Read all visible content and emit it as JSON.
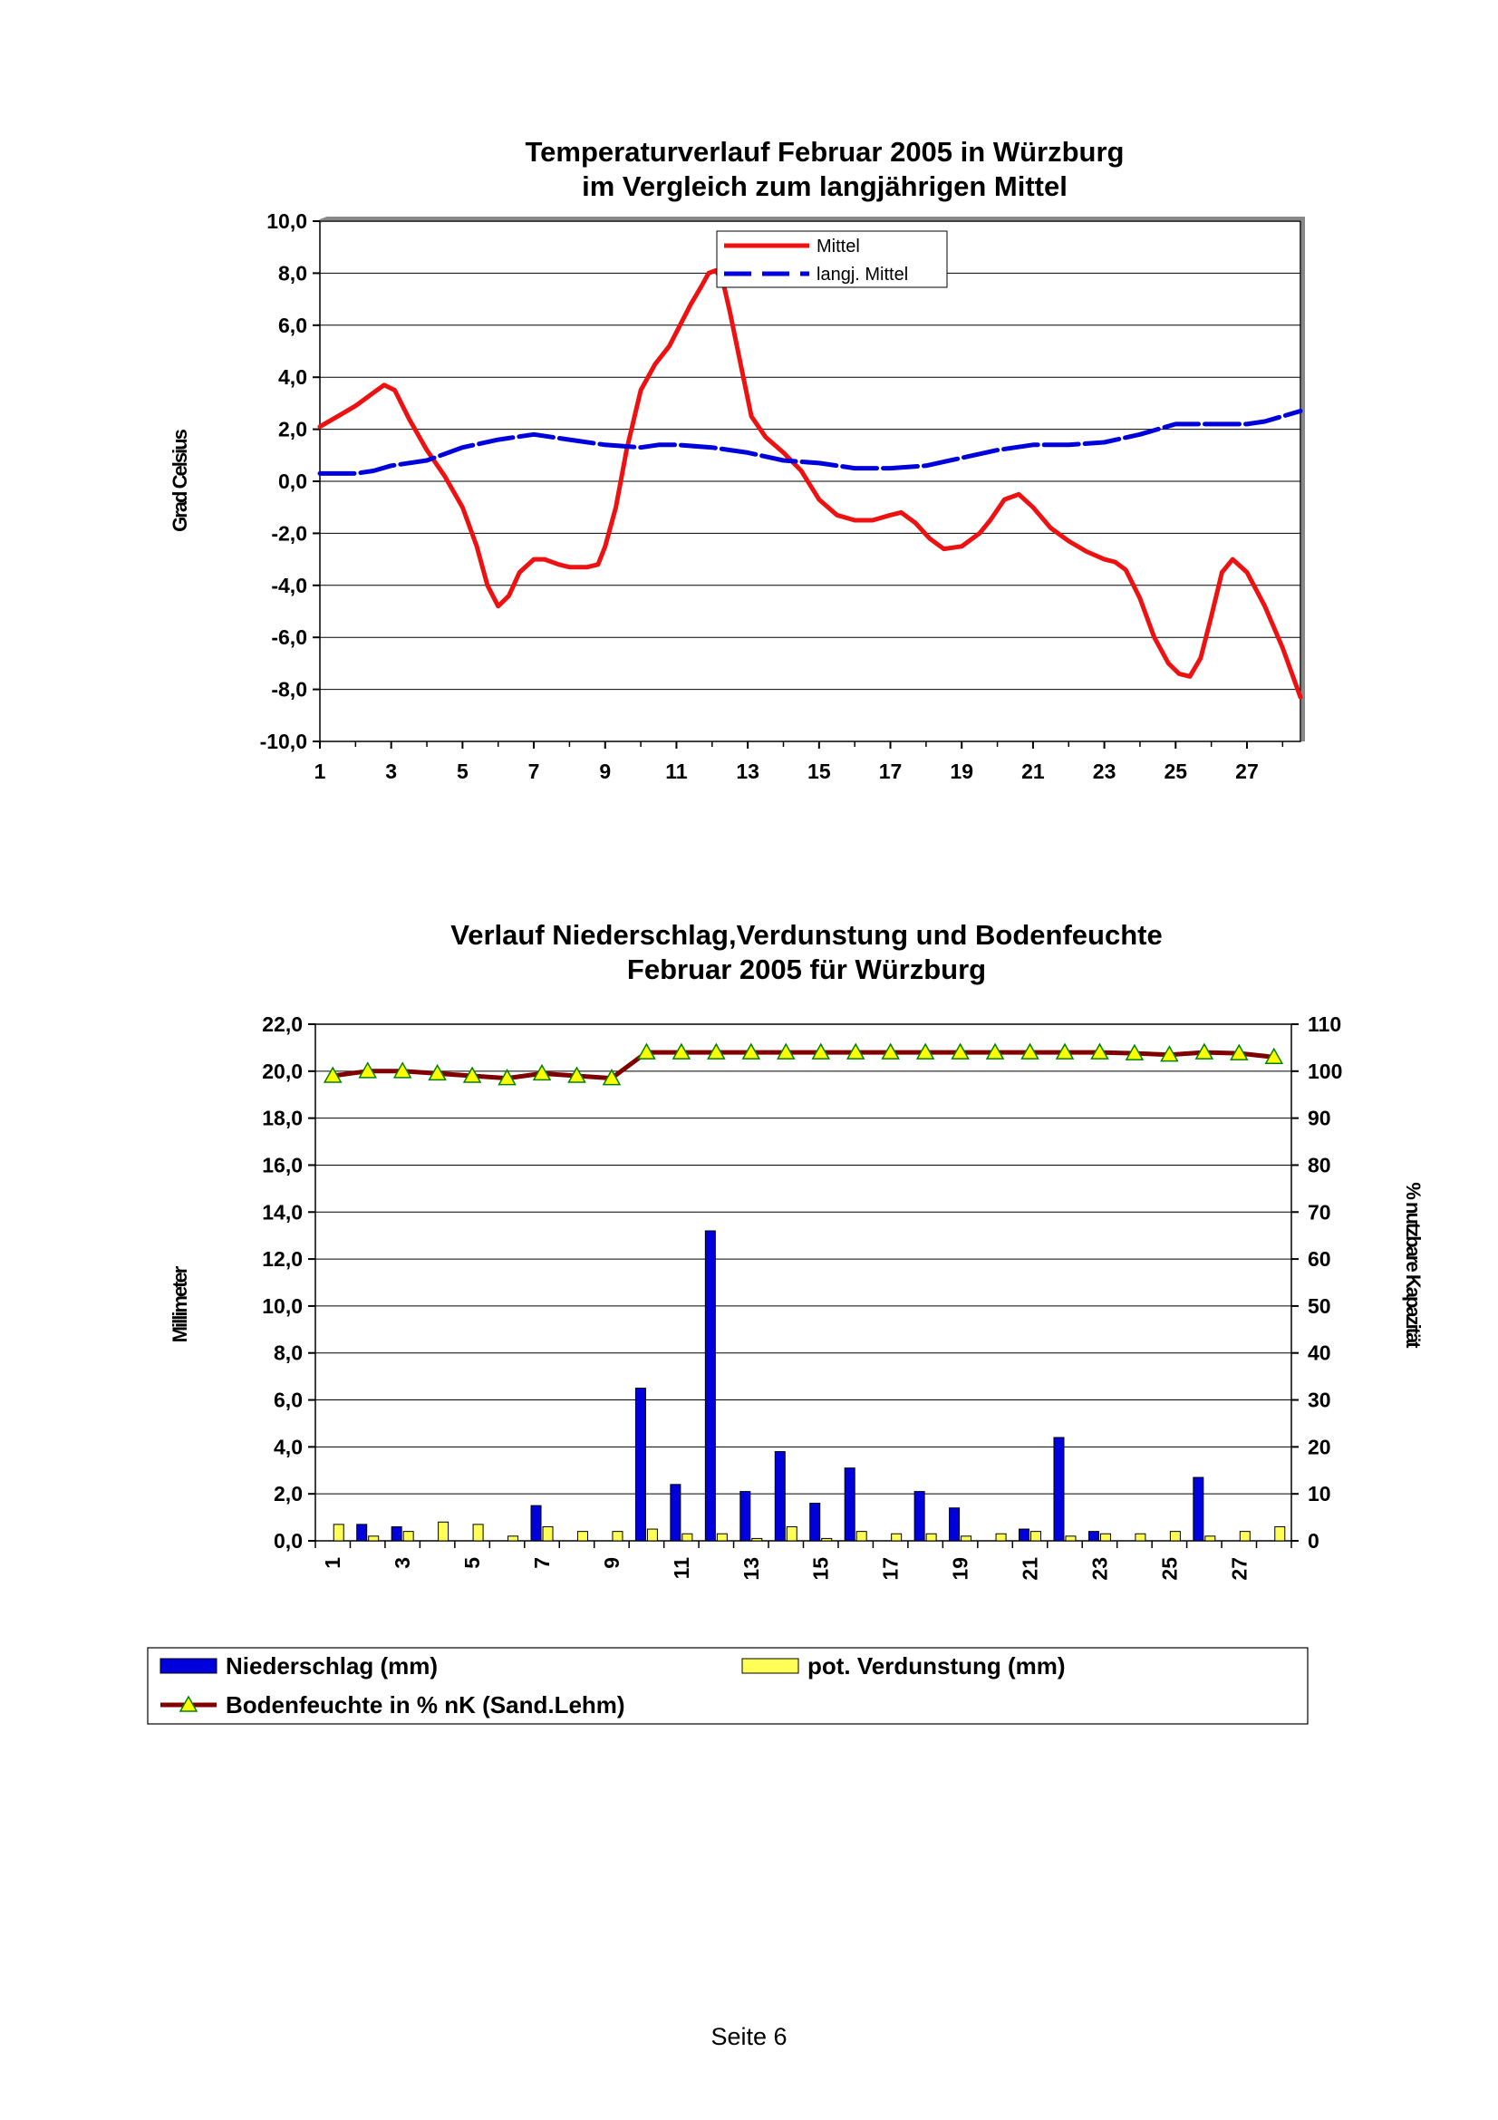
{
  "footer": {
    "page_label": "Seite 6"
  },
  "colors": {
    "mittel": "#ee1111",
    "langj": "#0000dd",
    "niederschlag": "#0000dd",
    "verdunstung": "#ffff55",
    "bodenfeuchte_line": "#800000",
    "bodenfeuchte_marker": "#ffff00"
  },
  "chart_data": [
    {
      "type": "line",
      "title_lines": [
        "Temperaturverlauf Februar 2005 in Würzburg",
        "im Vergleich zum langjährigen Mittel"
      ],
      "ylabel": "Grad Celsius",
      "xlabel": "",
      "ylim": [
        -10,
        10
      ],
      "y_ticks": [
        "10,0",
        "8,0",
        "6,0",
        "4,0",
        "2,0",
        "0,0",
        "-2,0",
        "-4,0",
        "-6,0",
        "-8,0",
        "-10,0"
      ],
      "x_tick_labels": [
        "1",
        "3",
        "5",
        "7",
        "9",
        "11",
        "13",
        "15",
        "17",
        "19",
        "21",
        "23",
        "25",
        "27"
      ],
      "x_range": [
        1,
        28.5
      ],
      "grid": true,
      "legend_position": "top-center",
      "series": [
        {
          "name": "Mittel",
          "x": [
            1,
            1.5,
            2,
            2.5,
            2.8,
            3.1,
            3.5,
            4,
            4.5,
            5,
            5.4,
            5.7,
            6,
            6.3,
            6.6,
            7,
            7.3,
            7.7,
            8,
            8.5,
            8.8,
            9,
            9.3,
            9.6,
            10,
            10.4,
            10.8,
            11.1,
            11.4,
            11.7,
            11.9,
            12.1,
            12.3,
            12.5,
            12.8,
            13.1,
            13.5,
            14,
            14.5,
            15,
            15.5,
            16,
            16.5,
            17,
            17.3,
            17.7,
            18.1,
            18.5,
            19,
            19.5,
            19.8,
            20.2,
            20.6,
            21,
            21.5,
            22,
            22.5,
            23,
            23.3,
            23.6,
            24,
            24.4,
            24.8,
            25.1,
            25.4,
            25.7,
            26,
            26.3,
            26.6,
            27,
            27.5,
            28,
            28.5
          ],
          "values": [
            2.1,
            2.5,
            2.9,
            3.4,
            3.7,
            3.5,
            2.4,
            1.2,
            0.2,
            -1.0,
            -2.5,
            -4.0,
            -4.8,
            -4.4,
            -3.5,
            -3.0,
            -3.0,
            -3.2,
            -3.3,
            -3.3,
            -3.2,
            -2.5,
            -1.0,
            1.2,
            3.5,
            4.5,
            5.2,
            6.0,
            6.8,
            7.5,
            8.0,
            8.1,
            7.7,
            6.5,
            4.5,
            2.5,
            1.7,
            1.1,
            0.4,
            -0.7,
            -1.3,
            -1.5,
            -1.5,
            -1.3,
            -1.2,
            -1.6,
            -2.2,
            -2.6,
            -2.5,
            -2.0,
            -1.5,
            -0.7,
            -0.5,
            -1.0,
            -1.8,
            -2.3,
            -2.7,
            -3.0,
            -3.1,
            -3.4,
            -4.5,
            -6.0,
            -7.0,
            -7.4,
            -7.5,
            -6.8,
            -5.2,
            -3.5,
            -3.0,
            -3.5,
            -4.8,
            -6.4,
            -8.3
          ]
        },
        {
          "name": "langj. Mittel",
          "x": [
            1,
            2,
            2.5,
            3,
            4,
            5,
            6,
            7,
            7.5,
            8,
            9,
            10,
            10.5,
            11,
            12,
            13,
            14,
            15,
            16,
            17,
            18,
            19,
            20,
            21,
            22,
            23,
            24,
            25,
            26,
            27,
            27.5,
            28.5
          ],
          "values": [
            0.3,
            0.3,
            0.4,
            0.6,
            0.8,
            1.3,
            1.6,
            1.8,
            1.7,
            1.6,
            1.4,
            1.3,
            1.4,
            1.4,
            1.3,
            1.1,
            0.8,
            0.7,
            0.5,
            0.5,
            0.6,
            0.9,
            1.2,
            1.4,
            1.4,
            1.5,
            1.8,
            2.2,
            2.2,
            2.2,
            2.3,
            2.7
          ]
        }
      ]
    },
    {
      "type": "bar",
      "title_lines": [
        "Verlauf Niederschlag,Verdunstung und Bodenfeuchte",
        "Februar 2005 für Würzburg"
      ],
      "ylabel": "Millimeter",
      "ylabel_right": "% nutzbare Kapazität",
      "ylim": [
        0,
        22
      ],
      "ylim_right": [
        0,
        110
      ],
      "y_ticks": [
        "22,0",
        "20,0",
        "18,0",
        "16,0",
        "14,0",
        "12,0",
        "10,0",
        "8,0",
        "6,0",
        "4,0",
        "2,0",
        "0,0"
      ],
      "y_ticks_right": [
        "110",
        "100",
        "90",
        "80",
        "70",
        "60",
        "50",
        "40",
        "30",
        "20",
        "10",
        "0"
      ],
      "categories": [
        "1",
        "2",
        "3",
        "4",
        "5",
        "6",
        "7",
        "8",
        "9",
        "10",
        "11",
        "12",
        "13",
        "14",
        "15",
        "16",
        "17",
        "18",
        "19",
        "20",
        "21",
        "22",
        "23",
        "24",
        "25",
        "26",
        "27",
        "28"
      ],
      "x_tick_labels": [
        "1",
        "3",
        "5",
        "7",
        "9",
        "11",
        "13",
        "15",
        "17",
        "19",
        "21",
        "23",
        "25",
        "27"
      ],
      "grid": true,
      "legend_position": "bottom",
      "series": [
        {
          "name": "Niederschlag (mm)",
          "axis": "left",
          "values": [
            0,
            0.7,
            0.6,
            0,
            0,
            0,
            1.5,
            0,
            0,
            6.5,
            2.4,
            13.2,
            2.1,
            3.8,
            1.6,
            3.1,
            0,
            2.1,
            1.4,
            0,
            0.5,
            4.4,
            0.4,
            0,
            0,
            2.7,
            0,
            0
          ]
        },
        {
          "name": "pot. Verdunstung (mm)",
          "axis": "left",
          "values": [
            0.7,
            0.2,
            0.4,
            0.8,
            0.7,
            0.2,
            0.6,
            0.4,
            0.4,
            0.5,
            0.3,
            0.3,
            0.1,
            0.6,
            0.1,
            0.4,
            0.3,
            0.3,
            0.2,
            0.3,
            0.4,
            0.2,
            0.3,
            0.3,
            0.4,
            0.2,
            0.4,
            0.6
          ]
        },
        {
          "name": "Bodenfeuchte in % nK (Sand.Lehm)",
          "axis": "right",
          "type": "line",
          "values": [
            99,
            100,
            100,
            99.5,
            99,
            98.5,
            99.5,
            99,
            98.5,
            104,
            104,
            104,
            104,
            104,
            104,
            104,
            104,
            104,
            104,
            104,
            104,
            104,
            104,
            103.8,
            103.5,
            104,
            103.8,
            103
          ]
        }
      ]
    }
  ]
}
